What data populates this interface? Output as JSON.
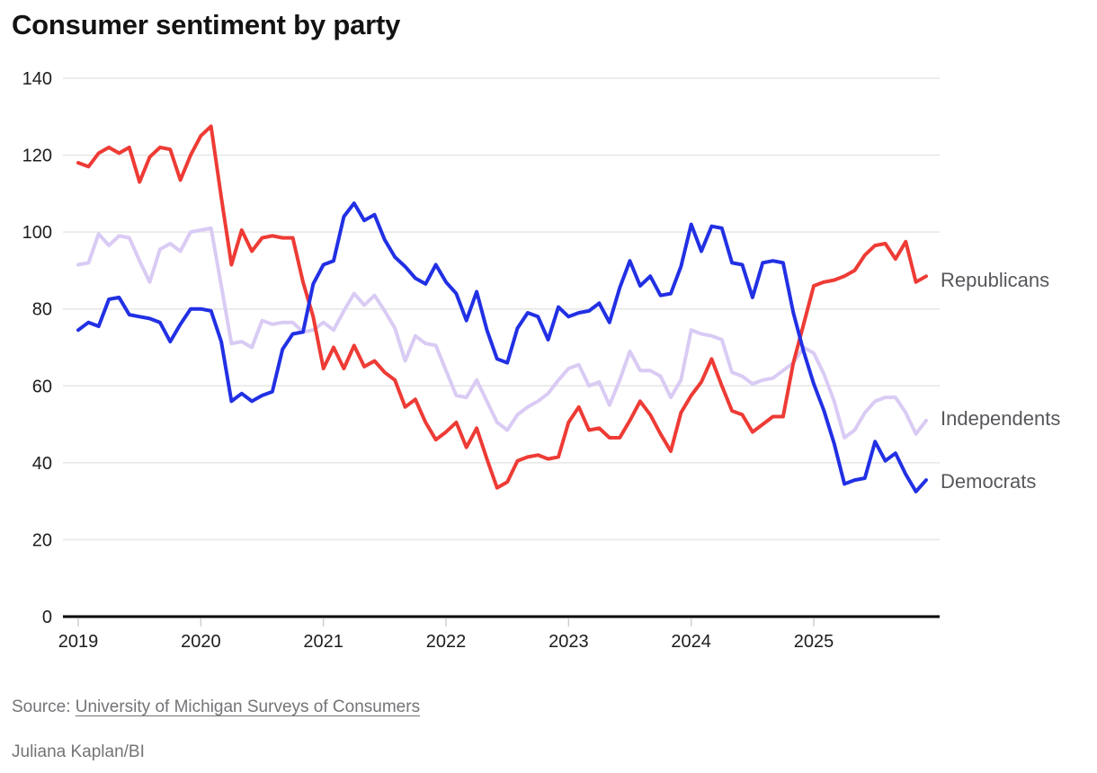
{
  "title": "Consumer sentiment by party",
  "source": {
    "prefix": "Source:",
    "link_text": "University of Michigan Surveys of Consumers"
  },
  "credit": "Juliana Kaplan/BI",
  "series_labels": {
    "republicans": "Republicans",
    "independents": "Independents",
    "democrats": "Democrats"
  },
  "colors": {
    "republicans": "#ee3b35",
    "democrats": "#2230e4",
    "independents": "#d9cbf4",
    "grid": "#e6e6e6",
    "axis": "#000000",
    "x_tick_mark": "#cfcfcf",
    "tick_text": "#1d1d1d",
    "series_label_text": "#56575b",
    "source_text": "#737477",
    "title_text": "#131313"
  },
  "chart_data": {
    "type": "line",
    "title": "Consumer sentiment by party",
    "frequency": "monthly",
    "x_start": "2019-01",
    "x_end": "2025-12",
    "x_tick_labels": [
      "2019",
      "2020",
      "2021",
      "2022",
      "2023",
      "2024",
      "2025"
    ],
    "y_ticks": [
      0,
      20,
      40,
      60,
      80,
      100,
      120,
      140
    ],
    "ylim": [
      0,
      140
    ],
    "grid": "horizontal",
    "legend_position": "right-of-line-ends",
    "series": [
      {
        "name": "Independents",
        "color_key": "independents",
        "values": [
          91.5,
          92,
          99.5,
          96.5,
          99,
          98.5,
          92.5,
          87,
          95.5,
          97,
          95,
          100,
          100.5,
          101,
          86,
          71,
          71.5,
          70,
          77,
          76,
          76.5,
          76.5,
          74,
          74.5,
          76.5,
          74.5,
          79.5,
          84,
          81,
          83.5,
          79.5,
          75,
          66.5,
          73,
          71,
          70.5,
          64,
          57.5,
          57,
          61.5,
          56,
          50.5,
          48.5,
          52.5,
          54.5,
          56,
          58,
          61.5,
          64.5,
          65.5,
          60,
          61,
          55,
          61.5,
          69,
          64,
          64,
          62.5,
          57,
          61.5,
          74.5,
          73.5,
          73,
          72,
          63.5,
          62.5,
          60.5,
          61.5,
          62,
          64,
          66,
          70,
          68.5,
          63,
          56,
          46.5,
          48.5,
          53,
          56,
          57,
          57,
          53,
          47.5,
          51
        ]
      },
      {
        "name": "Republicans",
        "color_key": "republicans",
        "values": [
          118,
          117,
          120.5,
          122,
          120.5,
          122,
          113,
          119.5,
          122,
          121.5,
          113.5,
          120,
          125,
          127.5,
          109,
          91.5,
          100.5,
          95,
          98.5,
          99,
          98.5,
          98.5,
          87,
          78,
          64.5,
          70,
          64.5,
          70.5,
          65,
          66.5,
          63.5,
          61.5,
          54.5,
          56.5,
          50.5,
          46,
          48,
          50.5,
          44,
          49,
          41,
          33.5,
          35,
          40.5,
          41.5,
          42,
          41,
          41.5,
          50.5,
          54.5,
          48.5,
          49,
          46.5,
          46.5,
          51,
          56,
          52.5,
          47.5,
          43,
          53,
          57.5,
          61,
          67,
          60,
          53.5,
          52.5,
          48,
          50,
          52,
          52,
          66,
          76,
          86,
          87,
          87.5,
          88.5,
          90,
          94,
          96.5,
          97,
          93,
          97.5,
          87,
          88.5
        ]
      },
      {
        "name": "Democrats",
        "color_key": "democrats",
        "values": [
          74.5,
          76.5,
          75.5,
          82.5,
          83,
          78.5,
          78,
          77.5,
          76.5,
          71.5,
          76,
          80,
          80,
          79.5,
          71.5,
          56,
          58,
          56,
          57.5,
          58.5,
          69.5,
          73.5,
          74,
          86.5,
          91.5,
          92.5,
          104,
          107.5,
          103,
          104.5,
          98,
          93.5,
          91,
          88,
          86.5,
          91.5,
          87,
          84,
          77,
          84.5,
          74.5,
          67,
          66,
          75,
          79,
          78,
          72,
          80.5,
          78,
          79,
          79.5,
          81.5,
          76.5,
          85.5,
          92.5,
          86,
          88.5,
          83.5,
          84,
          91,
          102,
          95,
          101.5,
          101,
          92,
          91.5,
          83,
          92,
          92.5,
          92,
          79,
          69,
          60.5,
          53.5,
          45,
          34.5,
          35.5,
          36,
          45.5,
          40.5,
          42.5,
          37,
          32.5,
          35.5
        ]
      }
    ]
  }
}
